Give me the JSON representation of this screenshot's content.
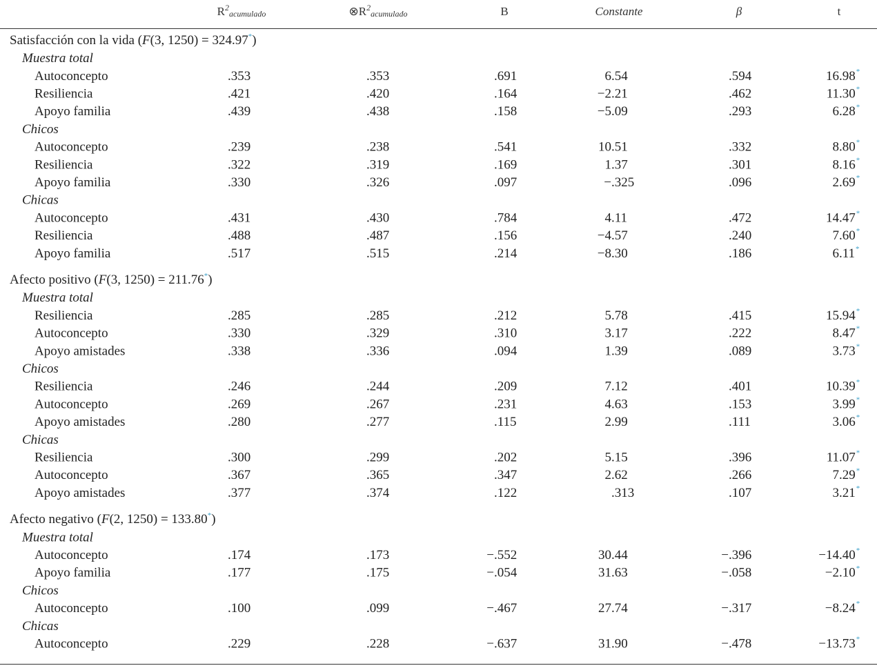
{
  "header": {
    "columns": [
      {
        "base": "R",
        "sup": "2",
        "sub": "acumulado"
      },
      {
        "base": "⊗R",
        "sup": "2",
        "sub": "acumulado"
      },
      "B",
      "Constante",
      "β",
      "t"
    ]
  },
  "sections": [
    {
      "label_parts": [
        "Satisfacción con la vida (",
        "F",
        "(3, 1250) = 324.97",
        "*",
        ")"
      ],
      "groups": [
        {
          "name": "Muestra total",
          "rows": [
            {
              "label": "Autoconcepto",
              "values": [
                ".353",
                ".353",
                ".691",
                "6.54",
                ".594",
                "16.98"
              ],
              "sig": "*"
            },
            {
              "label": "Resiliencia",
              "values": [
                ".421",
                ".420",
                ".164",
                "−2.21",
                ".462",
                "11.30"
              ],
              "sig": "*"
            },
            {
              "label": "Apoyo familia",
              "values": [
                ".439",
                ".438",
                ".158",
                "−5.09",
                ".293",
                "6.28"
              ],
              "sig": "*"
            }
          ]
        },
        {
          "name": "Chicos",
          "rows": [
            {
              "label": "Autoconcepto",
              "values": [
                ".239",
                ".238",
                ".541",
                "10.51",
                ".332",
                "8.80"
              ],
              "sig": "*"
            },
            {
              "label": "Resiliencia",
              "values": [
                ".322",
                ".319",
                ".169",
                "1.37",
                ".301",
                "8.16"
              ],
              "sig": "*"
            },
            {
              "label": "Apoyo familia",
              "values": [
                ".330",
                ".326",
                ".097",
                "−.325",
                ".096",
                "2.69"
              ],
              "sig": "*"
            }
          ]
        },
        {
          "name": "Chicas",
          "rows": [
            {
              "label": "Autoconcepto",
              "values": [
                ".431",
                ".430",
                ".784",
                "4.11",
                ".472",
                "14.47"
              ],
              "sig": "*"
            },
            {
              "label": "Resiliencia",
              "values": [
                ".488",
                ".487",
                ".156",
                "−4.57",
                ".240",
                "7.60"
              ],
              "sig": "*"
            },
            {
              "label": "Apoyo familia",
              "values": [
                ".517",
                ".515",
                ".214",
                "−8.30",
                ".186",
                "6.11"
              ],
              "sig": "*"
            }
          ]
        }
      ]
    },
    {
      "label_parts": [
        "Afecto positivo (",
        "F",
        "(3, 1250) = 211.76",
        "*",
        ")"
      ],
      "groups": [
        {
          "name": "Muestra total",
          "rows": [
            {
              "label": "Resiliencia",
              "values": [
                ".285",
                ".285",
                ".212",
                "5.78",
                ".415",
                "15.94"
              ],
              "sig": "*"
            },
            {
              "label": "Autoconcepto",
              "values": [
                ".330",
                ".329",
                ".310",
                "3.17",
                ".222",
                "8.47"
              ],
              "sig": "*"
            },
            {
              "label": "Apoyo amistades",
              "values": [
                ".338",
                ".336",
                ".094",
                "1.39",
                ".089",
                "3.73"
              ],
              "sig": "*"
            }
          ]
        },
        {
          "name": "Chicos",
          "rows": [
            {
              "label": "Resiliencia",
              "values": [
                ".246",
                ".244",
                ".209",
                "7.12",
                ".401",
                "10.39"
              ],
              "sig": "*"
            },
            {
              "label": "Autoconcepto",
              "values": [
                ".269",
                ".267",
                ".231",
                "4.63",
                ".153",
                "3.99"
              ],
              "sig": "*"
            },
            {
              "label": "Apoyo amistades",
              "values": [
                ".280",
                ".277",
                ".115",
                "2.99",
                ".111",
                "3.06"
              ],
              "sig": "*"
            }
          ]
        },
        {
          "name": "Chicas",
          "rows": [
            {
              "label": "Resiliencia",
              "values": [
                ".300",
                ".299",
                ".202",
                "5.15",
                ".396",
                "11.07"
              ],
              "sig": "*"
            },
            {
              "label": "Autoconcepto",
              "values": [
                ".367",
                ".365",
                ".347",
                "2.62",
                ".266",
                "7.29"
              ],
              "sig": "*"
            },
            {
              "label": "Apoyo amistades",
              "values": [
                ".377",
                ".374",
                ".122",
                ".313",
                ".107",
                "3.21"
              ],
              "sig": "*"
            }
          ]
        }
      ]
    },
    {
      "label_parts": [
        "Afecto negativo (",
        "F",
        "(2, 1250) = 133.80",
        "*",
        ")"
      ],
      "groups": [
        {
          "name": "Muestra total",
          "rows": [
            {
              "label": "Autoconcepto",
              "values": [
                ".174",
                ".173",
                "−.552",
                "30.44",
                "−.396",
                "−14.40"
              ],
              "sig": "*"
            },
            {
              "label": "Apoyo familia",
              "values": [
                ".177",
                ".175",
                "−.054",
                "31.63",
                "−.058",
                "−2.10"
              ],
              "sig": "*"
            }
          ]
        },
        {
          "name": "Chicos",
          "rows": [
            {
              "label": "Autoconcepto",
              "values": [
                ".100",
                ".099",
                "−.467",
                "27.74",
                "−.317",
                "−8.24"
              ],
              "sig": "*"
            }
          ]
        },
        {
          "name": "Chicas",
          "rows": [
            {
              "label": "Autoconcepto",
              "values": [
                ".229",
                ".228",
                "−.637",
                "31.90",
                "−.478",
                "−13.73"
              ],
              "sig": "*"
            }
          ]
        }
      ]
    }
  ]
}
